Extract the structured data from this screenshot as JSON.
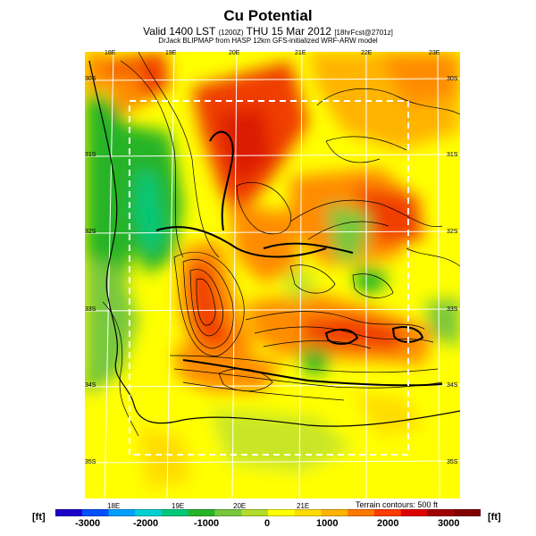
{
  "header": {
    "title": "Cu Potential",
    "subtitle_main": "Valid 1400 LST",
    "subtitle_paren": "(1200Z)",
    "subtitle_date": "THU 15 Mar 2012",
    "subtitle_tag": "[18hrFcst@2701z]",
    "credit": "DrJack BLIPMAP from HASP 12km GFS-initialized WRF-ARW model"
  },
  "map": {
    "lon_labels_top": [
      "18E",
      "19E",
      "20E",
      "21E",
      "22E",
      "23E"
    ],
    "lon_labels_bottom": [
      "18E",
      "19E",
      "20E",
      "21E"
    ],
    "lat_labels_left": [
      "30S",
      "31S",
      "32S",
      "33S",
      "34S",
      "35S"
    ],
    "lat_labels_right": [
      "30S",
      "31S",
      "32S",
      "33S",
      "34S",
      "35S"
    ],
    "terrain_note": "Terrain contours: 500 ft"
  },
  "colorbar": {
    "unit": "[ft]",
    "ticks": [
      "-3000",
      "-2000",
      "-1000",
      "0",
      "1000",
      "2000",
      "3000"
    ],
    "colors": [
      "#1c00c8",
      "#0050ff",
      "#00a0ff",
      "#00d0d0",
      "#00c878",
      "#28b428",
      "#78c83c",
      "#b4dc28",
      "#ffff00",
      "#ffdc00",
      "#ffb400",
      "#ff7800",
      "#ff3c00",
      "#dc0000",
      "#a00000",
      "#800000"
    ]
  },
  "palette": {
    "deep_red": "#dc1e00",
    "red": "#f03c00",
    "orange": "#ff8c00",
    "light_orange": "#ffb400",
    "yellow": "#ffff00",
    "yellow_green": "#c8e628",
    "light_green": "#78c83c",
    "green": "#28b428",
    "teal": "#00c878"
  }
}
